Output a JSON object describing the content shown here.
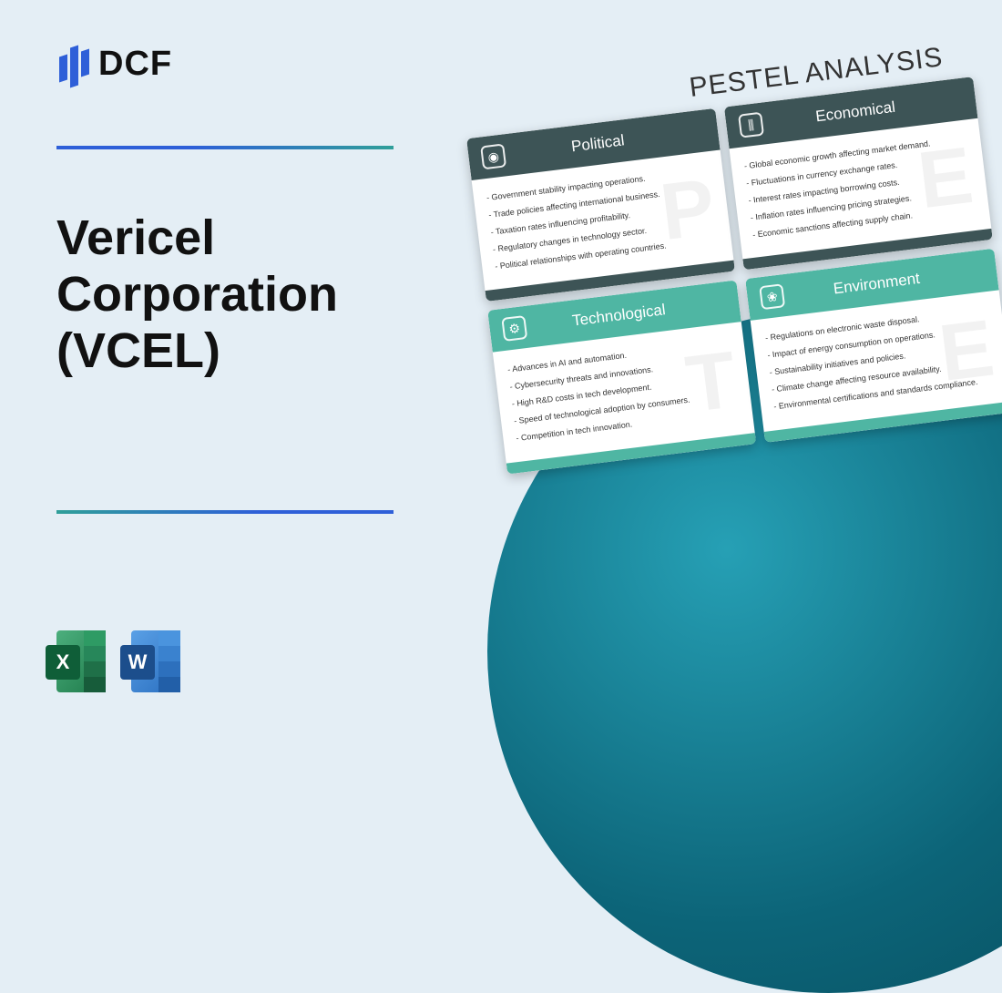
{
  "logo": {
    "text": "DCF"
  },
  "title": "Vericel\nCorporation\n(VCEL)",
  "divider_gradient": [
    "#2e5fd8",
    "#2f9f99"
  ],
  "background_color": "#e4eef5",
  "circle_gradient": [
    "#26a0b5",
    "#0c6478",
    "#084e5e"
  ],
  "file_icons": {
    "excel": {
      "letter": "X",
      "badge_color": "#0f5e38"
    },
    "word": {
      "letter": "W",
      "badge_color": "#1c4e8c"
    }
  },
  "pestel": {
    "heading": "PESTEL ANALYSIS",
    "rotation_deg": -7,
    "cards": [
      {
        "title": "Political",
        "theme": "dark",
        "watermark": "P",
        "icon": "person",
        "items": [
          "Government stability impacting operations.",
          "Trade policies affecting international business.",
          "Taxation rates influencing profitability.",
          "Regulatory changes in technology sector.",
          "Political relationships with operating countries."
        ]
      },
      {
        "title": "Economical",
        "theme": "dark",
        "watermark": "E",
        "icon": "chart",
        "items": [
          "Global economic growth affecting market demand.",
          "Fluctuations in currency exchange rates.",
          "Interest rates impacting borrowing costs.",
          "Inflation rates influencing pricing strategies.",
          "Economic sanctions affecting supply chain."
        ]
      },
      {
        "title": "Technological",
        "theme": "teal",
        "watermark": "T",
        "icon": "gear",
        "items": [
          "Advances in AI and automation.",
          "Cybersecurity threats and innovations.",
          "High R&D costs in tech development.",
          "Speed of technological adoption by consumers.",
          "Competition in tech innovation."
        ]
      },
      {
        "title": "Environment",
        "theme": "teal",
        "watermark": "E",
        "icon": "leaf",
        "items": [
          "Regulations on electronic waste disposal.",
          "Impact of energy consumption on operations.",
          "Sustainability initiatives and policies.",
          "Climate change affecting resource availability.",
          "Environmental certifications and standards compliance."
        ]
      }
    ]
  }
}
